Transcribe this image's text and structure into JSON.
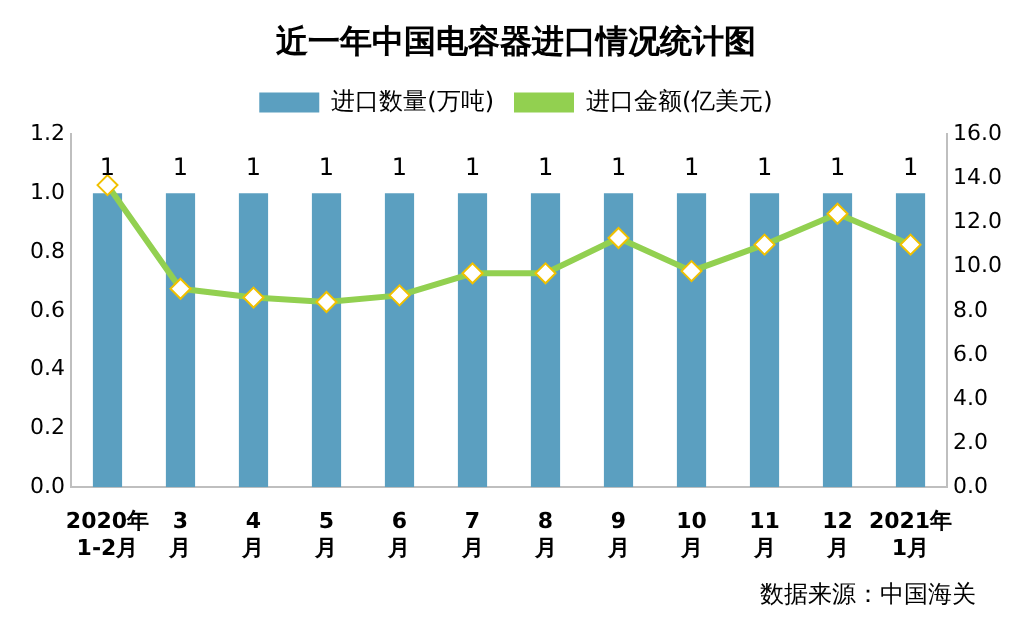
{
  "chart_data": {
    "type": "bar",
    "title": "近一年中国电容器进口情况统计图",
    "categories": [
      "2020年\n1-2月",
      "3\n月",
      "4\n月",
      "5\n月",
      "6\n月",
      "7\n月",
      "8\n月",
      "9\n月",
      "10\n月",
      "11\n月",
      "12\n月",
      "2021年\n1月"
    ],
    "series": [
      {
        "name": "进口数量(万吨)",
        "color": "#5b9fc0",
        "values": [
          1,
          1,
          1,
          1,
          1,
          1,
          1,
          1,
          1,
          1,
          1,
          1
        ],
        "value_labels": [
          "1",
          "1",
          "1",
          "1",
          "1",
          "1",
          "1",
          "1",
          "1",
          "1",
          "1",
          "1"
        ]
      },
      {
        "name": "进口金额(亿美元)",
        "type": "line",
        "axis": "y2",
        "color": "#92d050",
        "marker": "diamond",
        "values": [
          13.7,
          9.0,
          8.6,
          8.4,
          8.7,
          9.7,
          9.7,
          11.3,
          9.8,
          11.0,
          12.4,
          11.0
        ]
      }
    ],
    "ylim": [
      0,
      1.2
    ],
    "yticks": [
      {
        "value": 0,
        "label": "0.0"
      },
      {
        "value": 0.2,
        "label": "0.2"
      },
      {
        "value": 0.4,
        "label": "0.4"
      },
      {
        "value": 0.6,
        "label": "0.6"
      },
      {
        "value": 0.8,
        "label": "0.8"
      },
      {
        "value": 1,
        "label": "1.0"
      },
      {
        "value": 1.2,
        "label": "1.2"
      }
    ],
    "y2lim": [
      0,
      16
    ],
    "y2ticks": [
      {
        "value": 0,
        "label": "0.0"
      },
      {
        "value": 2,
        "label": "2.0"
      },
      {
        "value": 4,
        "label": "4.0"
      },
      {
        "value": 6,
        "label": "6.0"
      },
      {
        "value": 8,
        "label": "8.0"
      },
      {
        "value": 10,
        "label": "10.0"
      },
      {
        "value": 12,
        "label": "12.0"
      },
      {
        "value": 14,
        "label": "14.0"
      },
      {
        "value": 16,
        "label": "16.0"
      }
    ],
    "grid": false,
    "legend": "top",
    "annotations": [
      "数据来源：中国海关"
    ]
  }
}
